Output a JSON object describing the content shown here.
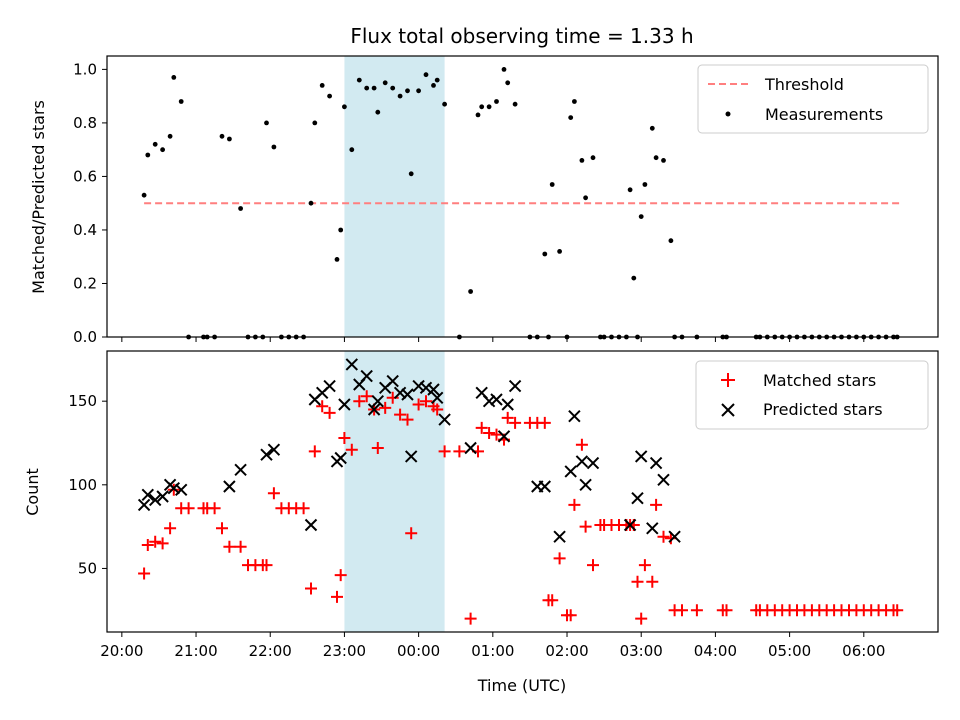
{
  "title": "Flux total observing time = 1.33 h",
  "shaded_interval_hours": [
    23.0,
    24.35
  ],
  "colors": {
    "threshold": "#ff7f7f",
    "measurement": "#000000",
    "matched": "#ff0000",
    "predicted": "#000000",
    "shade": "#add8e6"
  },
  "chart_data": [
    {
      "type": "scatter",
      "ylabel": "Matched/Predicted stars",
      "ylim": [
        0,
        1.05
      ],
      "yticks": [
        "0.0",
        "0.2",
        "0.4",
        "0.6",
        "0.8",
        "1.0"
      ],
      "threshold": {
        "value": 0.5,
        "x_range_hours": [
          20.3,
          30.5
        ]
      },
      "legend": {
        "placement": "top-right",
        "entries": [
          "Threshold",
          "Measurements"
        ]
      },
      "series": [
        {
          "name": "Measurements",
          "x": [
            20.3,
            20.35,
            20.45,
            20.55,
            20.65,
            20.7,
            20.8,
            20.9,
            21.1,
            21.15,
            21.25,
            21.35,
            21.45,
            21.6,
            21.7,
            21.8,
            21.9,
            21.95,
            22.05,
            22.15,
            22.25,
            22.35,
            22.45,
            22.55,
            22.6,
            22.7,
            22.8,
            22.9,
            22.95,
            23.0,
            23.1,
            23.2,
            23.3,
            23.4,
            23.45,
            23.55,
            23.65,
            23.75,
            23.85,
            23.9,
            24.0,
            24.1,
            24.2,
            24.25,
            24.35,
            24.55,
            24.7,
            24.8,
            24.85,
            24.95,
            25.05,
            25.15,
            25.2,
            25.3,
            25.5,
            25.6,
            25.7,
            25.75,
            25.8,
            25.9,
            26.0,
            26.05,
            26.1,
            26.2,
            26.25,
            26.35,
            26.45,
            26.5,
            26.6,
            26.7,
            26.8,
            26.85,
            26.9,
            26.95,
            27.0,
            27.05,
            27.15,
            27.2,
            27.3,
            27.4,
            27.45,
            27.55,
            27.75,
            28.1,
            28.15,
            28.55,
            28.6,
            28.7,
            28.8,
            28.9,
            29.0,
            29.1,
            29.2,
            29.3,
            29.4,
            29.5,
            29.6,
            29.7,
            29.8,
            29.9,
            30.0,
            30.1,
            30.2,
            30.3,
            30.4,
            30.45
          ],
          "y": [
            0.53,
            0.68,
            0.72,
            0.7,
            0.75,
            0.97,
            0.88,
            0,
            0,
            0,
            0,
            0.75,
            0.74,
            0.48,
            0,
            0,
            0,
            0.8,
            0.71,
            0,
            0,
            0,
            0,
            0.5,
            0.8,
            0.94,
            0.9,
            0.29,
            0.4,
            0.86,
            0.7,
            0.96,
            0.93,
            0.93,
            0.84,
            0.95,
            0.93,
            0.9,
            0.92,
            0.61,
            0.92,
            0.98,
            0.94,
            0.96,
            0.87,
            0,
            0.17,
            0.83,
            0.86,
            0.86,
            0.88,
            1.0,
            0.95,
            0.87,
            0,
            0,
            0.31,
            0,
            0.57,
            0.32,
            0,
            0.82,
            0.88,
            0.66,
            0.52,
            0.67,
            0,
            0,
            0,
            0,
            0,
            0.55,
            0.22,
            0,
            0.45,
            0.57,
            0.78,
            0.67,
            0.66,
            0.36,
            0,
            0,
            0,
            0,
            0,
            0,
            0,
            0,
            0,
            0,
            0,
            0,
            0,
            0,
            0,
            0,
            0,
            0,
            0,
            0,
            0,
            0,
            0,
            0,
            0,
            0
          ]
        }
      ]
    },
    {
      "type": "scatter",
      "ylabel": "Count",
      "xlabel": "Time (UTC)",
      "ylim": [
        12,
        180
      ],
      "yticks": [
        "50",
        "100",
        "150"
      ],
      "xticks": [
        "20:00",
        "21:00",
        "22:00",
        "23:00",
        "00:00",
        "01:00",
        "02:00",
        "03:00",
        "04:00",
        "05:00",
        "06:00"
      ],
      "xlim_hours": [
        19.8,
        31.0
      ],
      "legend": {
        "placement": "top-right",
        "entries": [
          "Matched stars",
          "Predicted stars"
        ]
      },
      "series": [
        {
          "name": "Matched stars",
          "x": [
            20.3,
            20.35,
            20.45,
            20.55,
            20.65,
            20.7,
            20.8,
            20.9,
            21.1,
            21.15,
            21.25,
            21.35,
            21.45,
            21.6,
            21.7,
            21.8,
            21.9,
            21.95,
            22.05,
            22.15,
            22.25,
            22.35,
            22.45,
            22.55,
            22.6,
            22.7,
            22.8,
            22.9,
            22.95,
            23.0,
            23.1,
            23.2,
            23.3,
            23.4,
            23.45,
            23.55,
            23.65,
            23.75,
            23.85,
            23.9,
            24.0,
            24.1,
            24.2,
            24.25,
            24.35,
            24.55,
            24.7,
            24.8,
            24.85,
            24.95,
            25.05,
            25.15,
            25.2,
            25.3,
            25.5,
            25.6,
            25.7,
            25.75,
            25.8,
            25.9,
            26.0,
            26.05,
            26.1,
            26.2,
            26.25,
            26.35,
            26.45,
            26.5,
            26.6,
            26.7,
            26.8,
            26.85,
            26.9,
            26.95,
            27.0,
            27.05,
            27.15,
            27.2,
            27.3,
            27.4,
            27.45,
            27.55,
            27.75,
            28.1,
            28.15,
            28.55,
            28.6,
            28.7,
            28.8,
            28.9,
            29.0,
            29.1,
            29.2,
            29.3,
            29.4,
            29.5,
            29.6,
            29.7,
            29.8,
            29.9,
            30.0,
            30.1,
            30.2,
            30.3,
            30.4,
            30.45
          ],
          "y": [
            47,
            64,
            66,
            65,
            74,
            97,
            86,
            86,
            86,
            86,
            86,
            74,
            63,
            63,
            52,
            52,
            52,
            52,
            95,
            86,
            86,
            86,
            86,
            38,
            120,
            147,
            143,
            33,
            46,
            128,
            121,
            150,
            153,
            145,
            122,
            146,
            152,
            142,
            139,
            71,
            148,
            150,
            147,
            145,
            120,
            120,
            20,
            120,
            134,
            131,
            130,
            127,
            140,
            137,
            137,
            137,
            137,
            31,
            31,
            56,
            22,
            22,
            88,
            124,
            75,
            52,
            76,
            76,
            76,
            76,
            76,
            76,
            76,
            42,
            20,
            52,
            42,
            88,
            69,
            68,
            25,
            25,
            25,
            25,
            25,
            25,
            25,
            25,
            25,
            25,
            25,
            25,
            25,
            25,
            25,
            25,
            25,
            25,
            25,
            25,
            25,
            25,
            25,
            25,
            25,
            25
          ]
        },
        {
          "name": "Predicted stars",
          "x": [
            20.3,
            20.35,
            20.45,
            20.55,
            20.65,
            20.7,
            20.8,
            21.45,
            21.6,
            21.95,
            22.05,
            22.55,
            22.6,
            22.7,
            22.8,
            22.9,
            22.95,
            23.0,
            23.1,
            23.2,
            23.3,
            23.4,
            23.45,
            23.55,
            23.65,
            23.75,
            23.85,
            23.9,
            24.0,
            24.1,
            24.2,
            24.25,
            24.35,
            24.7,
            24.85,
            24.95,
            25.05,
            25.15,
            25.2,
            25.3,
            25.6,
            25.7,
            25.9,
            26.05,
            26.1,
            26.2,
            26.25,
            26.35,
            26.85,
            26.95,
            27.0,
            27.15,
            27.2,
            27.3,
            27.45
          ],
          "y": [
            88,
            94,
            91,
            93,
            100,
            98,
            97,
            99,
            109,
            118,
            121,
            76,
            151,
            155,
            159,
            114,
            116,
            148,
            172,
            160,
            165,
            145,
            150,
            158,
            162,
            155,
            154,
            117,
            159,
            158,
            157,
            152,
            139,
            122,
            155,
            150,
            151,
            129,
            148,
            159,
            99,
            99,
            69,
            108,
            141,
            114,
            100,
            113,
            76,
            92,
            117,
            74,
            113,
            103,
            69
          ]
        }
      ]
    }
  ]
}
